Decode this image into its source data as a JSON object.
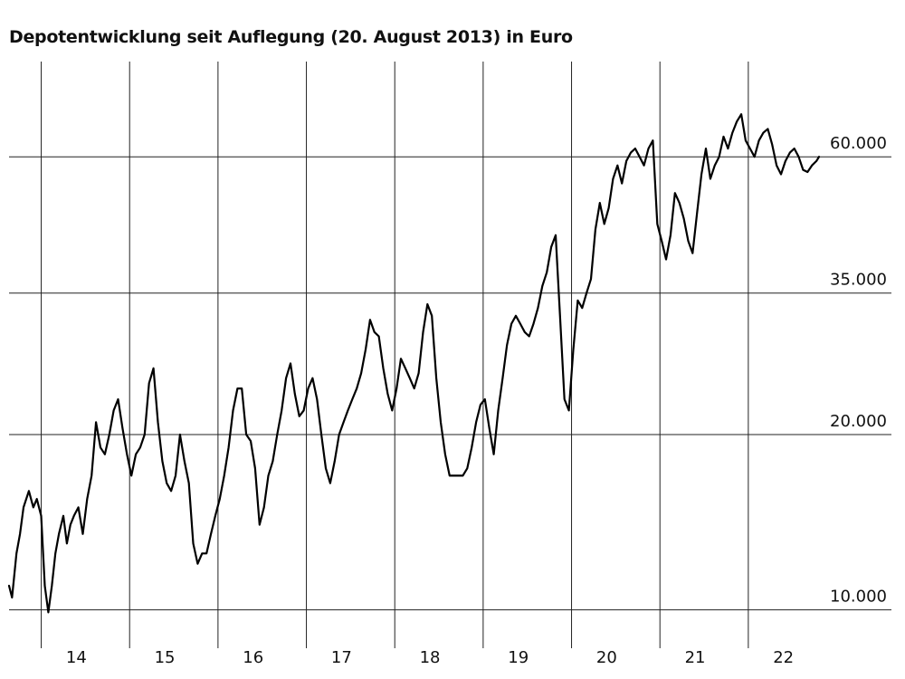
{
  "chart_data": {
    "type": "line",
    "title": "Depotentwicklung seit Auflegung (20. August 2013) in Euro",
    "xlabel": "",
    "ylabel": "",
    "scale_y": "log",
    "ylim": [
      9000,
      90000
    ],
    "y_ticks": [
      {
        "value": 60000,
        "label": "60.000"
      },
      {
        "value": 35000,
        "label": "35.000"
      },
      {
        "value": 20000,
        "label": "20.000"
      },
      {
        "value": 10000,
        "label": "10.000"
      }
    ],
    "x_ticks": [
      "14",
      "15",
      "16",
      "17",
      "18",
      "19",
      "20",
      "21",
      "22"
    ],
    "x_range": [
      2013.636,
      2022.8
    ],
    "grid": true,
    "series": [
      {
        "color": "#000000",
        "x": [
          2013.636,
          2013.67,
          2013.72,
          2013.76,
          2013.8,
          2013.86,
          2013.91,
          2013.95,
          2014.0,
          2014.04,
          2014.08,
          2014.12,
          2014.16,
          2014.2,
          2014.25,
          2014.29,
          2014.33,
          2014.37,
          2014.42,
          2014.47,
          2014.52,
          2014.57,
          2014.62,
          2014.67,
          2014.72,
          2014.77,
          2014.82,
          2014.87,
          2014.92,
          2014.97,
          2015.02,
          2015.07,
          2015.12,
          2015.17,
          2015.22,
          2015.27,
          2015.32,
          2015.37,
          2015.42,
          2015.47,
          2015.52,
          2015.57,
          2015.62,
          2015.67,
          2015.72,
          2015.77,
          2015.82,
          2015.87,
          2015.92,
          2015.97,
          2016.02,
          2016.07,
          2016.12,
          2016.17,
          2016.22,
          2016.27,
          2016.32,
          2016.37,
          2016.42,
          2016.47,
          2016.52,
          2016.57,
          2016.62,
          2016.67,
          2016.72,
          2016.77,
          2016.82,
          2016.87,
          2016.92,
          2016.97,
          2017.02,
          2017.07,
          2017.12,
          2017.17,
          2017.22,
          2017.27,
          2017.32,
          2017.37,
          2017.42,
          2017.47,
          2017.52,
          2017.57,
          2017.62,
          2017.67,
          2017.72,
          2017.77,
          2017.82,
          2017.87,
          2017.92,
          2017.97,
          2018.02,
          2018.07,
          2018.12,
          2018.17,
          2018.22,
          2018.27,
          2018.32,
          2018.37,
          2018.42,
          2018.47,
          2018.52,
          2018.57,
          2018.62,
          2018.67,
          2018.72,
          2018.77,
          2018.82,
          2018.87,
          2018.92,
          2018.97,
          2019.02,
          2019.07,
          2019.12,
          2019.17,
          2019.22,
          2019.27,
          2019.32,
          2019.37,
          2019.42,
          2019.47,
          2019.52,
          2019.57,
          2019.62,
          2019.67,
          2019.72,
          2019.77,
          2019.82,
          2019.87,
          2019.92,
          2019.97,
          2020.02,
          2020.07,
          2020.12,
          2020.17,
          2020.22,
          2020.27,
          2020.32,
          2020.37,
          2020.42,
          2020.47,
          2020.52,
          2020.57,
          2020.62,
          2020.67,
          2020.72,
          2020.77,
          2020.82,
          2020.87,
          2020.92,
          2020.97,
          2021.02,
          2021.07,
          2021.12,
          2021.17,
          2021.22,
          2021.27,
          2021.32,
          2021.37,
          2021.42,
          2021.47,
          2021.52,
          2021.57,
          2021.62,
          2021.67,
          2021.72,
          2021.77,
          2021.82,
          2021.87,
          2021.92,
          2021.97,
          2022.02,
          2022.07,
          2022.12,
          2022.17,
          2022.22,
          2022.27,
          2022.32,
          2022.37,
          2022.42,
          2022.47,
          2022.52,
          2022.57,
          2022.62,
          2022.67,
          2022.72,
          2022.77,
          2022.8
        ],
        "values": [
          11000,
          10500,
          12500,
          13500,
          15000,
          16000,
          15000,
          15500,
          14500,
          11000,
          9900,
          11000,
          12500,
          13500,
          14500,
          13000,
          14000,
          14500,
          15000,
          13500,
          15500,
          17000,
          21000,
          19000,
          18500,
          20000,
          22000,
          23000,
          20500,
          18500,
          17000,
          18500,
          19000,
          20000,
          24500,
          26000,
          21000,
          18000,
          16500,
          16000,
          17000,
          20000,
          18000,
          16500,
          13000,
          12000,
          12500,
          12500,
          13500,
          14500,
          15500,
          17000,
          19000,
          22000,
          24000,
          24000,
          20000,
          19500,
          17500,
          14000,
          15000,
          17000,
          18000,
          20000,
          22000,
          25000,
          26500,
          23500,
          21500,
          22000,
          24000,
          25000,
          23000,
          20000,
          17500,
          16500,
          18000,
          20000,
          21000,
          22000,
          23000,
          24000,
          25500,
          28000,
          31500,
          30000,
          29500,
          26000,
          23500,
          22000,
          24000,
          27000,
          26000,
          25000,
          24000,
          25500,
          30000,
          33500,
          32000,
          25000,
          21000,
          18500,
          17000,
          17000,
          17000,
          17000,
          17500,
          19000,
          21000,
          22500,
          23000,
          20500,
          18500,
          22000,
          25000,
          28500,
          31000,
          32000,
          31000,
          30000,
          29500,
          31000,
          33000,
          36000,
          38000,
          42000,
          44000,
          32000,
          23000,
          22000,
          28000,
          34000,
          33000,
          35000,
          37000,
          45000,
          50000,
          46000,
          49000,
          55000,
          58000,
          54000,
          59000,
          61000,
          62000,
          60000,
          58000,
          62000,
          64000,
          46000,
          43000,
          40000,
          44000,
          52000,
          50000,
          47000,
          43000,
          41000,
          48000,
          56000,
          62000,
          55000,
          58000,
          60000,
          65000,
          62000,
          66000,
          69000,
          71000,
          64000,
          62000,
          60000,
          64000,
          66000,
          67000,
          63000,
          58000,
          56000,
          59000,
          61000,
          62000,
          60000,
          57000,
          56500,
          58000,
          59000,
          60000
        ]
      }
    ]
  }
}
